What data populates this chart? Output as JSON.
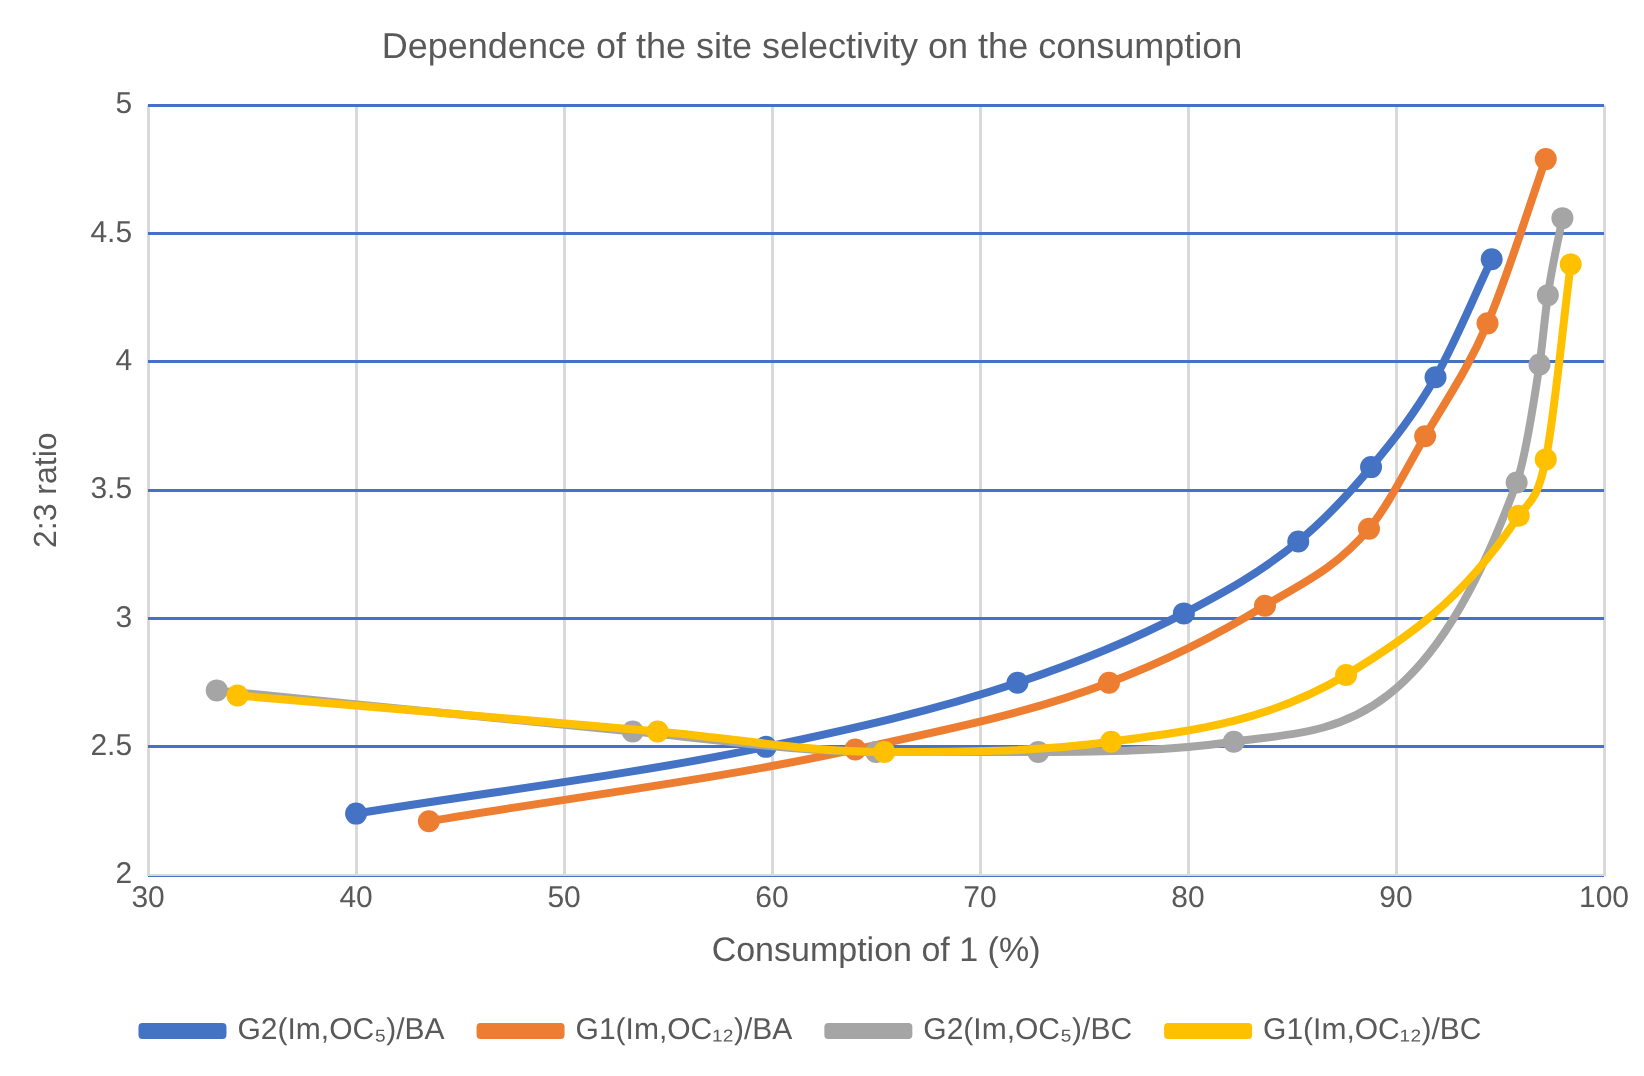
{
  "chart_data": {
    "type": "line",
    "title": "Dependence of the site selectivity on the consumption",
    "xlabel": "Consumption of 1 (%)",
    "ylabel": "2:3 ratio",
    "xlim": [
      30,
      100
    ],
    "xticks": [
      30,
      40,
      50,
      60,
      70,
      80,
      90,
      100
    ],
    "ylim": [
      2,
      5
    ],
    "yticks": [
      2,
      2.5,
      3,
      3.5,
      4,
      4.5,
      5
    ],
    "grid": true,
    "legend": "bottom",
    "marker": "circle",
    "line_style": "solid",
    "series": [
      {
        "name": "G2(Im,OC₅)/BA",
        "color": "#4472c4",
        "x": [
          40,
          59.7,
          71.8,
          79.8,
          85.3,
          88.8,
          91.9,
          94.6
        ],
        "values": [
          2.24,
          2.5,
          2.75,
          3.02,
          3.3,
          3.59,
          3.94,
          4.4
        ]
      },
      {
        "name": "G1(Im,OC₁₂)/BA",
        "color": "#ed7d31",
        "x": [
          43.5,
          64,
          76.2,
          83.7,
          88.7,
          91.4,
          94.4,
          97.2
        ],
        "values": [
          2.21,
          2.49,
          2.75,
          3.05,
          3.35,
          3.71,
          4.15,
          4.79
        ]
      },
      {
        "name": "G2(Im,OC₅)/BC",
        "color": "#a5a5a5",
        "x": [
          33.3,
          53.3,
          65,
          72.8,
          82.2,
          95.8,
          96.9,
          97.3,
          98
        ],
        "values": [
          2.72,
          2.56,
          2.48,
          2.48,
          2.52,
          3.53,
          3.99,
          4.26,
          4.56
        ]
      },
      {
        "name": "G1(Im,OC₁₂)/BC",
        "color": "#ffc000",
        "x": [
          34.3,
          54.5,
          65.4,
          76.3,
          87.6,
          95.9,
          97.2,
          98.4
        ],
        "values": [
          2.7,
          2.56,
          2.48,
          2.52,
          2.78,
          3.4,
          3.62,
          4.38
        ]
      }
    ]
  }
}
